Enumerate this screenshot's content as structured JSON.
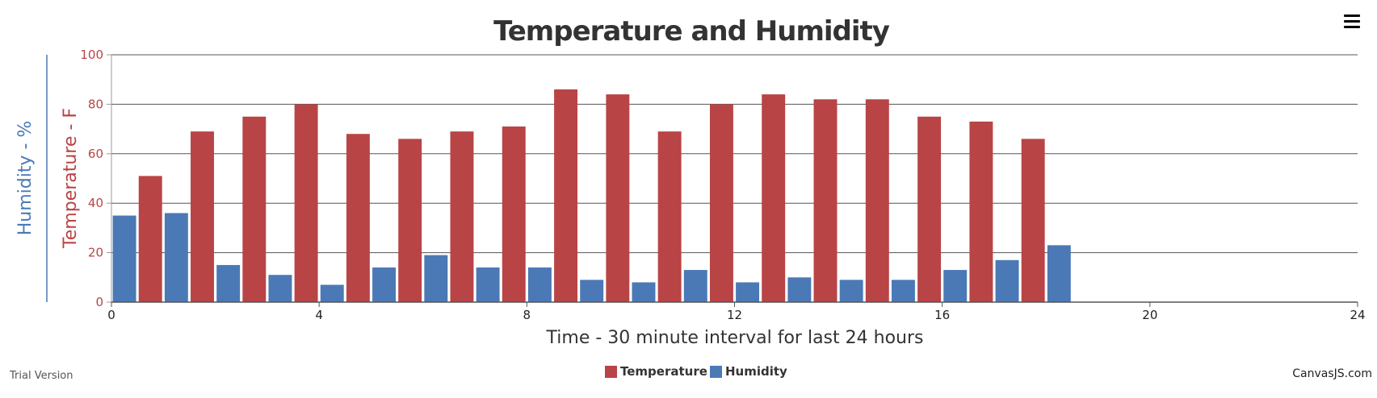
{
  "chart_data": {
    "type": "bar",
    "title": "Temperature and Humidity",
    "xlabel": "Time - 30 minute interval for last 24 hours",
    "ylabel": "Temperature - F",
    "ylabel2": "Humidity - %",
    "xlim": [
      0,
      24
    ],
    "ylim": [
      0,
      100
    ],
    "x_ticks": [
      "0",
      "4",
      "8",
      "12",
      "16",
      "20",
      "24"
    ],
    "y_ticks": [
      "0",
      "20",
      "40",
      "60",
      "80",
      "100"
    ],
    "grid": true,
    "legend_position": "bottom-center",
    "x": [
      0,
      1,
      2,
      3,
      4,
      5,
      6,
      7,
      8,
      9,
      10,
      11,
      12,
      13,
      14,
      15,
      16,
      17,
      18
    ],
    "series": [
      {
        "name": "Temperature",
        "color": "#b84446",
        "values": [
          null,
          51,
          69,
          75,
          80,
          68,
          66,
          69,
          71,
          86,
          84,
          69,
          80,
          84,
          82,
          82,
          75,
          73,
          66
        ]
      },
      {
        "name": "Humidity",
        "color": "#4a79b6",
        "values": [
          35,
          36,
          15,
          11,
          7,
          14,
          19,
          14,
          14,
          9,
          8,
          13,
          8,
          10,
          9,
          9,
          13,
          17,
          23
        ]
      }
    ]
  },
  "footer": {
    "trial_label": "Trial Version",
    "credit": "CanvasJS.com"
  },
  "toolbar": {
    "menu_icon": "hamburger-menu-icon"
  }
}
